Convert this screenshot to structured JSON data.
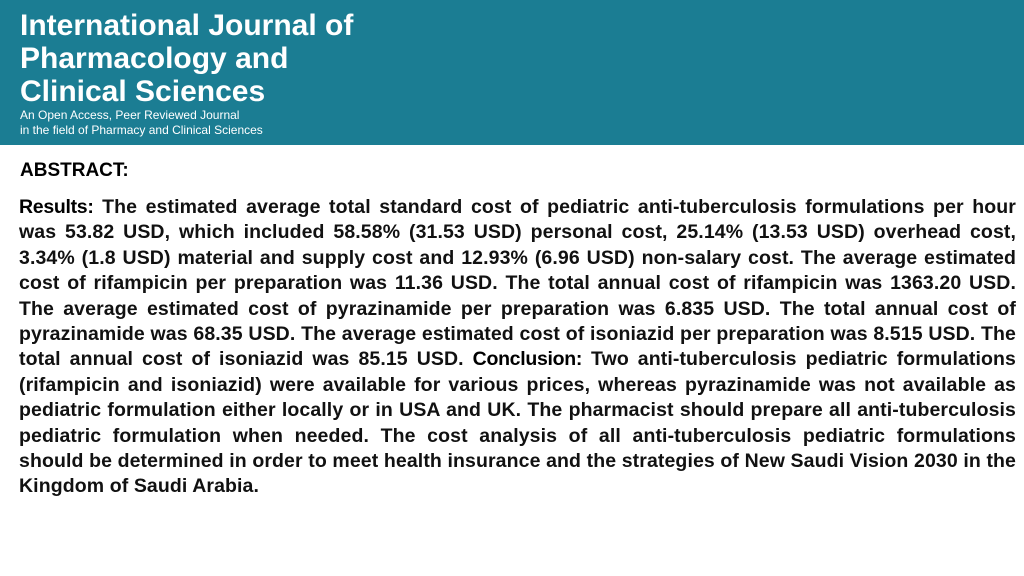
{
  "header": {
    "title_lines": [
      "International Journal of",
      "Pharmacology and",
      "Clinical Sciences"
    ],
    "subtitle_lines": [
      "An Open Access, Peer Reviewed Journal",
      "in the field of Pharmacy and Clinical Sciences"
    ],
    "background_color": "#1b7d93"
  },
  "abstract": {
    "heading": "ABSTRACT:",
    "results_label": "Results:",
    "results_text": "The estimated average total standard cost of pediatric anti-tuberculosis formulations per hour was 53.82 USD, which included 58.58% (31.53 USD) personal cost, 25.14% (13.53 USD) overhead cost, 3.34% (1.8 USD) material and supply cost and 12.93% (6.96 USD) non-salary cost. The average estimated cost of rifampicin per preparation was 11.36 USD. The total annual cost of rifampicin was 1363.20 USD. The average estimated cost of pyrazinamide per preparation was 6.835 USD. The total annual cost of pyrazinamide was 68.35 USD. The average estimated cost of isoniazid per preparation was 8.515 USD. The total annual cost of isoniazid was 85.15 USD.",
    "conclusion_label": "Conclusion:",
    "conclusion_text": "Two anti-tuberculosis pediatric formulations (rifampicin and isoniazid) were available for various prices, whereas pyrazinamide was not available as pediatric formulation either locally or in USA and UK. The pharmacist should prepare all anti-tuberculosis pediatric formulation when needed. The cost analysis of all anti-tuberculosis pediatric formulations should be determined in order to meet health insurance and the strategies of New Saudi Vision 2030 in the Kingdom of Saudi Arabia."
  }
}
